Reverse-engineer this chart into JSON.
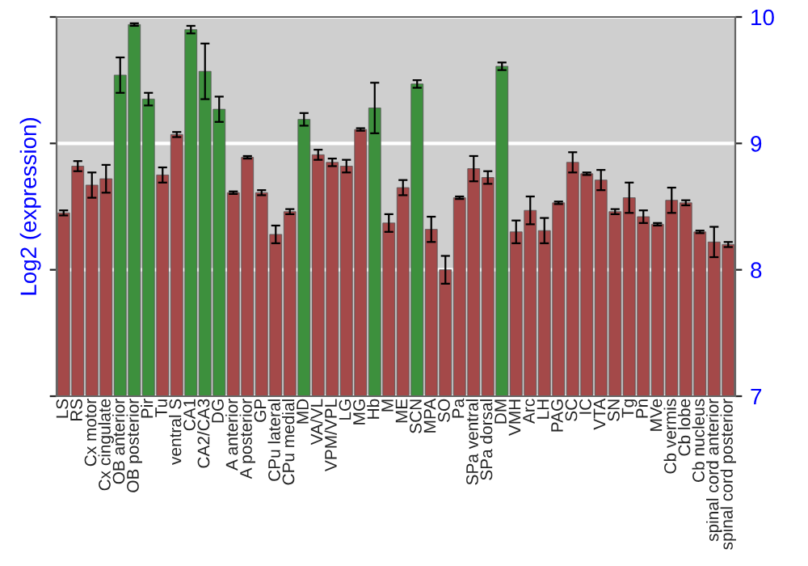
{
  "chart_data": {
    "type": "bar",
    "ylabel": "Log2 (expression)",
    "categories": [
      "LS",
      "RS",
      "Cx motor",
      "Cx cingulate",
      "OB anterior",
      "OB posterior",
      "Pir",
      "Tu",
      "ventral S",
      "CA1",
      "CA2/CA3",
      "DG",
      "A anterior",
      "A posterior",
      "GP",
      "CPu lateral",
      "CPu medial",
      "MD",
      "VA/VL",
      "VPM/VPL",
      "LG",
      "MG",
      "Hb",
      "M",
      "ME",
      "SCN",
      "MPA",
      "SO",
      "Pa",
      "SPa ventral",
      "SPa dorsal",
      "DM",
      "VMH",
      "Arc",
      "LH",
      "PAG",
      "SC",
      "IC",
      "VTA",
      "SN",
      "Tg",
      "Pn",
      "MVe",
      "Cb vermis",
      "Cb lobe",
      "Cb nucleus",
      "spinal cord anterior",
      "spinal cord posterior"
    ],
    "values": [
      8.45,
      8.82,
      8.67,
      8.72,
      9.54,
      9.94,
      9.35,
      8.75,
      9.07,
      9.9,
      9.57,
      9.27,
      8.61,
      8.89,
      8.61,
      8.28,
      8.46,
      9.19,
      8.91,
      8.85,
      8.82,
      9.11,
      9.28,
      8.37,
      8.65,
      9.47,
      8.32,
      8.0,
      8.57,
      8.8,
      8.73,
      9.61,
      8.3,
      8.47,
      8.31,
      8.53,
      8.85,
      8.76,
      8.71,
      8.46,
      8.57,
      8.42,
      8.36,
      8.55,
      8.53,
      8.3,
      8.22,
      8.2
    ],
    "errors": [
      0.02,
      0.04,
      0.1,
      0.11,
      0.14,
      0.01,
      0.05,
      0.06,
      0.02,
      0.03,
      0.22,
      0.1,
      0.01,
      0.01,
      0.02,
      0.07,
      0.02,
      0.05,
      0.04,
      0.03,
      0.05,
      0.01,
      0.2,
      0.07,
      0.06,
      0.03,
      0.1,
      0.11,
      0.01,
      0.1,
      0.05,
      0.03,
      0.09,
      0.11,
      0.1,
      0.01,
      0.08,
      0.01,
      0.08,
      0.02,
      0.12,
      0.05,
      0.01,
      0.1,
      0.02,
      0.01,
      0.12,
      0.02
    ],
    "colors": [
      "#b33a3a",
      "#b33a3a",
      "#b33a3a",
      "#b33a3a",
      "#2f9e2f",
      "#2f9e2f",
      "#2f9e2f",
      "#b33a3a",
      "#b33a3a",
      "#2f9e2f",
      "#2f9e2f",
      "#2f9e2f",
      "#b33a3a",
      "#b33a3a",
      "#b33a3a",
      "#b33a3a",
      "#b33a3a",
      "#2f9e2f",
      "#b33a3a",
      "#b33a3a",
      "#b33a3a",
      "#b33a3a",
      "#2f9e2f",
      "#b33a3a",
      "#b33a3a",
      "#2f9e2f",
      "#b33a3a",
      "#b33a3a",
      "#b33a3a",
      "#b33a3a",
      "#b33a3a",
      "#2f9e2f",
      "#b33a3a",
      "#b33a3a",
      "#b33a3a",
      "#b33a3a",
      "#b33a3a",
      "#b33a3a",
      "#b33a3a",
      "#b33a3a",
      "#b33a3a",
      "#b33a3a",
      "#b33a3a",
      "#b33a3a",
      "#b33a3a",
      "#b33a3a",
      "#b33a3a",
      "#b33a3a"
    ],
    "ylim": [
      7,
      10
    ],
    "yticks": [
      7,
      8,
      9,
      10
    ],
    "grid": "y"
  }
}
